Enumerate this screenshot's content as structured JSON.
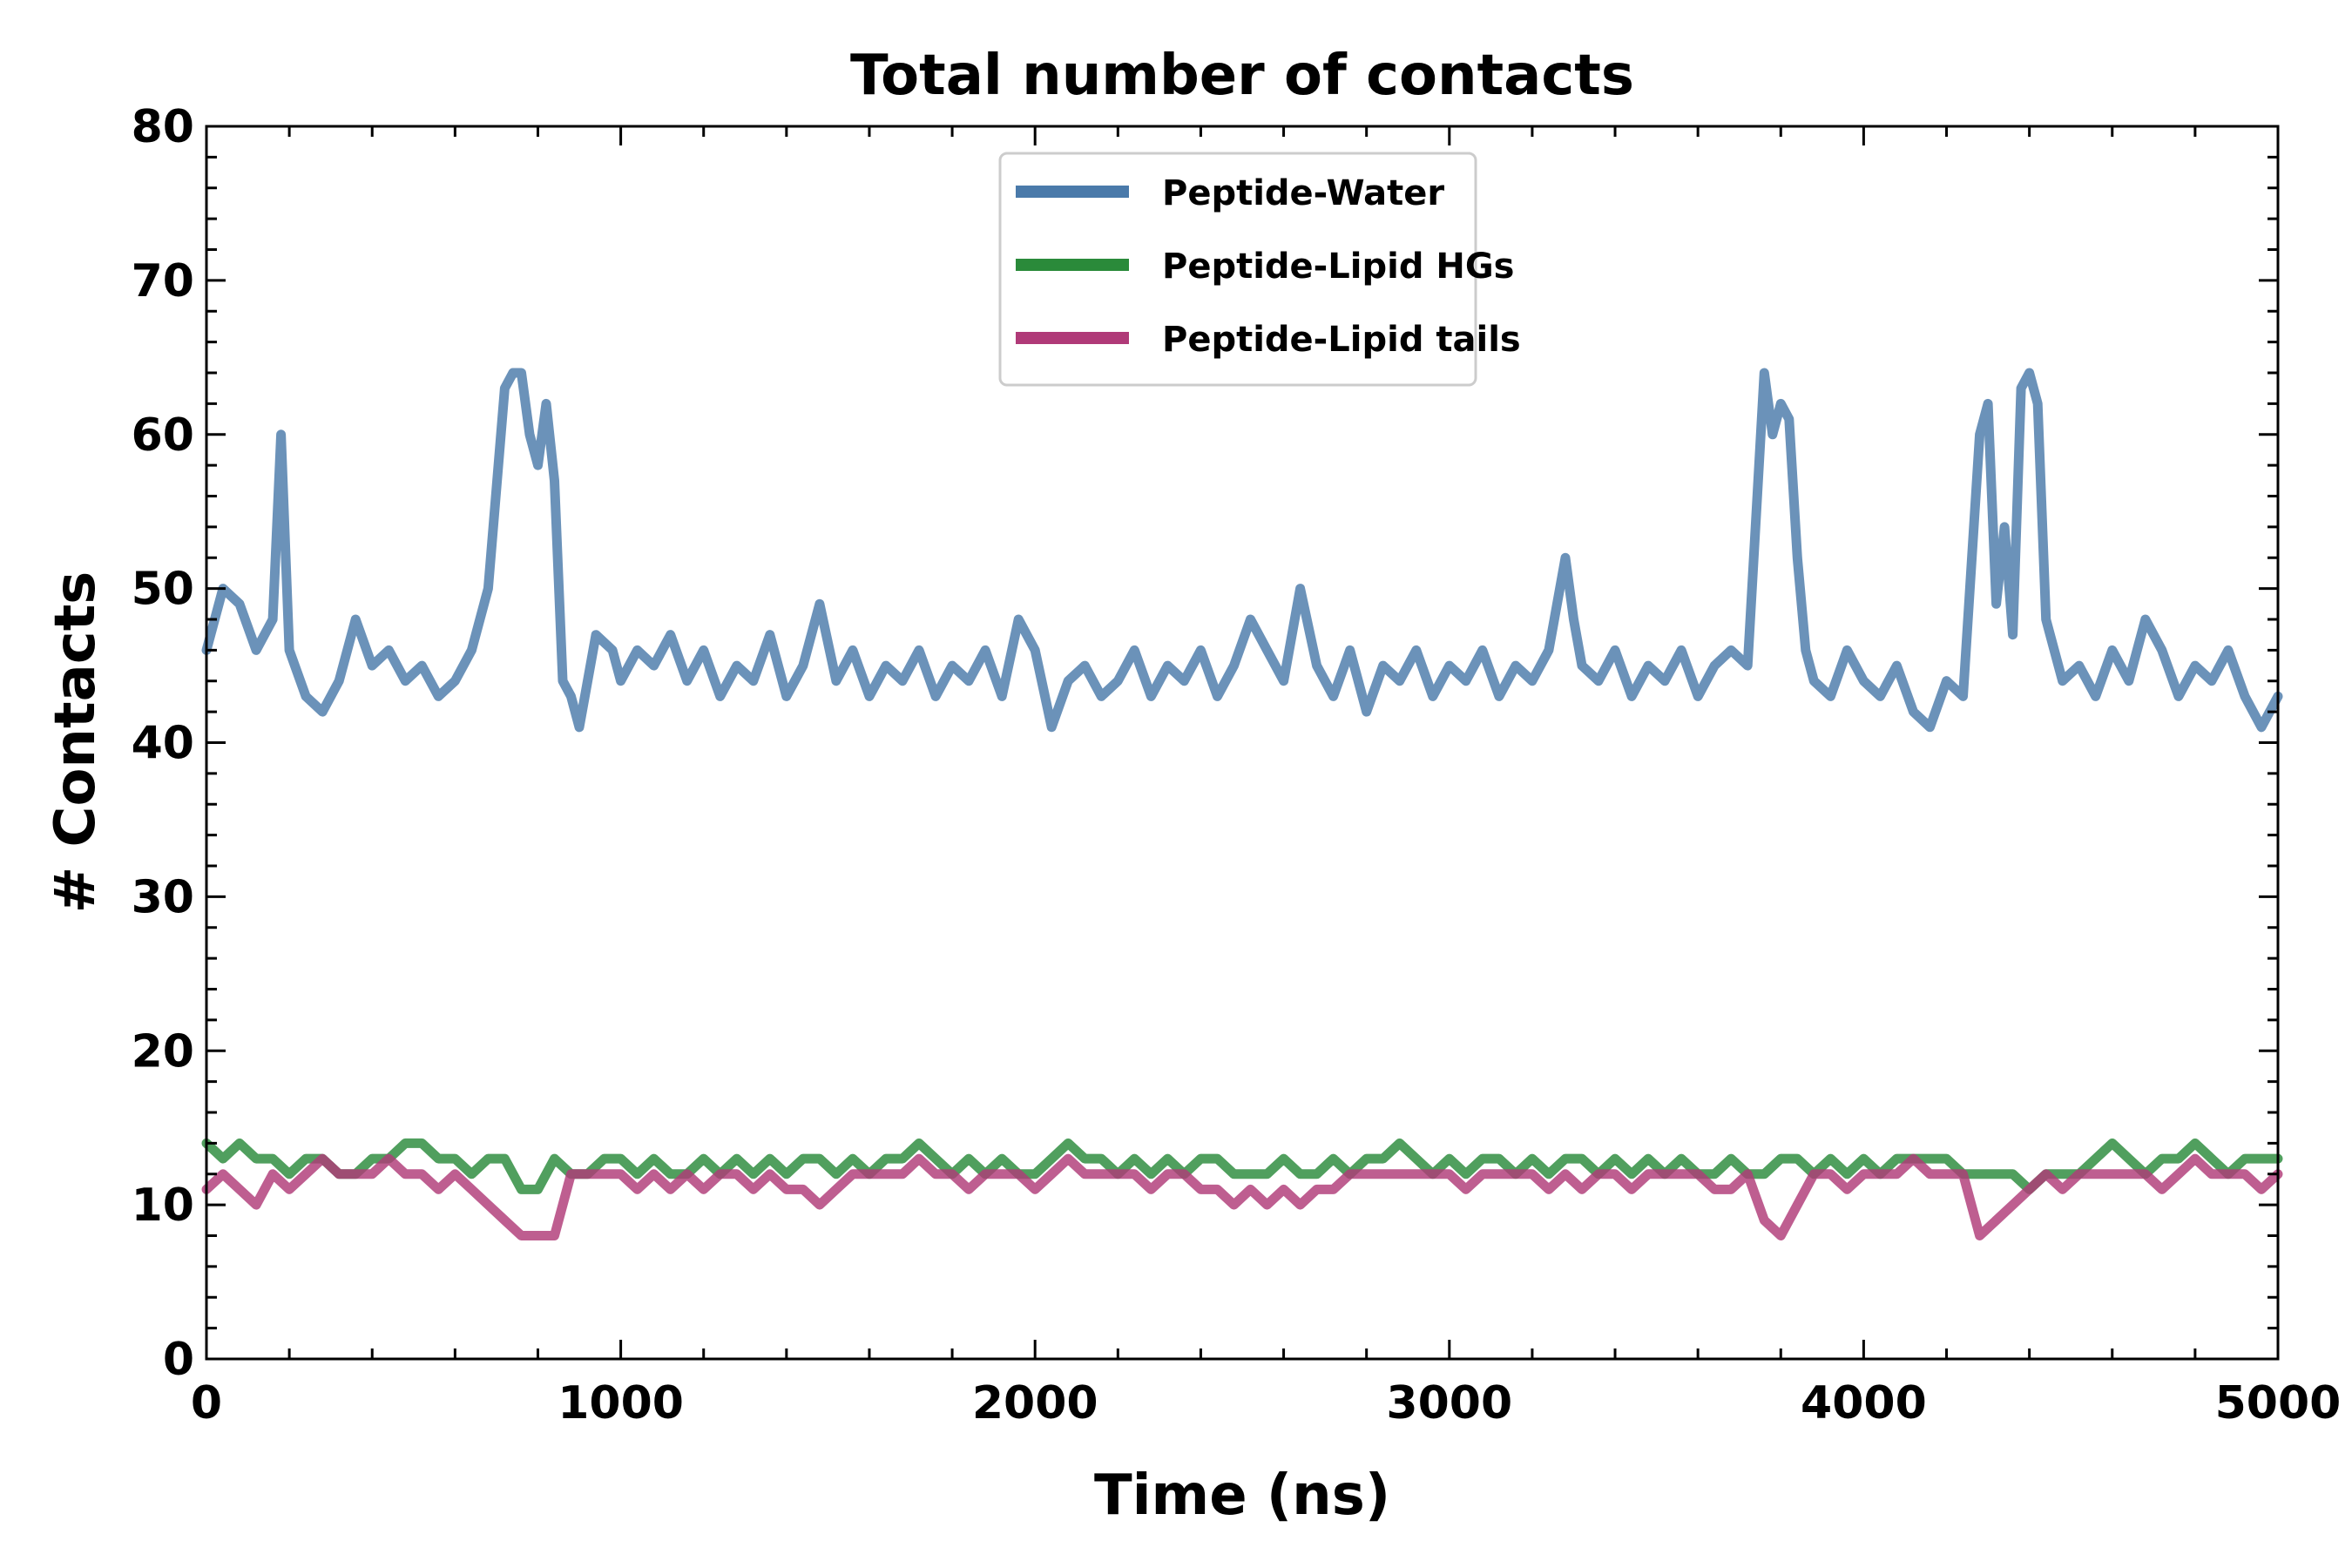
{
  "chart_data": {
    "type": "line",
    "title": "Total number of contacts",
    "xlabel": "Time (ns)",
    "ylabel": "# Contacts",
    "xlim": [
      0,
      5000
    ],
    "ylim": [
      0,
      80
    ],
    "x_ticks": [
      0,
      1000,
      2000,
      3000,
      4000,
      5000
    ],
    "y_ticks": [
      0,
      10,
      20,
      30,
      40,
      50,
      60,
      70,
      80
    ],
    "x_ticks_label": [
      "0",
      "1000",
      "2000",
      "3000",
      "4000",
      "5000"
    ],
    "y_ticks_label": [
      "0",
      "10",
      "20",
      "30",
      "40",
      "50",
      "60",
      "70",
      "80"
    ],
    "grid": false,
    "legend_position": "top-center",
    "series": [
      {
        "name": "Peptide-Water",
        "color": "#4a7aaa",
        "x": [
          0,
          40,
          80,
          120,
          160,
          180,
          200,
          240,
          280,
          320,
          360,
          400,
          440,
          480,
          520,
          560,
          600,
          640,
          680,
          720,
          740,
          760,
          780,
          800,
          820,
          840,
          860,
          880,
          900,
          940,
          980,
          1000,
          1040,
          1080,
          1120,
          1160,
          1200,
          1240,
          1280,
          1320,
          1360,
          1400,
          1440,
          1480,
          1520,
          1560,
          1600,
          1640,
          1680,
          1720,
          1760,
          1800,
          1840,
          1880,
          1920,
          1960,
          2000,
          2040,
          2080,
          2120,
          2160,
          2200,
          2240,
          2280,
          2320,
          2360,
          2400,
          2440,
          2480,
          2520,
          2560,
          2600,
          2640,
          2680,
          2720,
          2760,
          2800,
          2840,
          2880,
          2920,
          2960,
          3000,
          3040,
          3080,
          3120,
          3160,
          3200,
          3240,
          3280,
          3300,
          3320,
          3360,
          3400,
          3440,
          3480,
          3520,
          3560,
          3600,
          3640,
          3680,
          3720,
          3760,
          3780,
          3800,
          3820,
          3840,
          3860,
          3880,
          3920,
          3960,
          4000,
          4040,
          4080,
          4120,
          4160,
          4200,
          4240,
          4280,
          4300,
          4320,
          4340,
          4360,
          4380,
          4400,
          4420,
          4440,
          4460,
          4480,
          4520,
          4560,
          4600,
          4640,
          4680,
          4720,
          4760,
          4800,
          4840,
          4880,
          4920,
          4960,
          5000
        ],
        "values": [
          46,
          50,
          49,
          46,
          48,
          60,
          46,
          43,
          42,
          44,
          48,
          45,
          46,
          44,
          45,
          43,
          44,
          46,
          50,
          63,
          64,
          64,
          60,
          58,
          62,
          57,
          44,
          43,
          41,
          47,
          46,
          44,
          46,
          45,
          47,
          44,
          46,
          43,
          45,
          44,
          47,
          43,
          45,
          49,
          44,
          46,
          43,
          45,
          44,
          46,
          43,
          45,
          44,
          46,
          43,
          48,
          46,
          41,
          44,
          45,
          43,
          44,
          46,
          43,
          45,
          44,
          46,
          43,
          45,
          48,
          46,
          44,
          50,
          45,
          43,
          46,
          42,
          45,
          44,
          46,
          43,
          45,
          44,
          46,
          43,
          45,
          44,
          46,
          52,
          48,
          45,
          44,
          46,
          43,
          45,
          44,
          46,
          43,
          45,
          46,
          45,
          64,
          60,
          62,
          61,
          52,
          46,
          44,
          43,
          46,
          44,
          43,
          45,
          42,
          41,
          44,
          43,
          60,
          62,
          49,
          54,
          47,
          63,
          64,
          62,
          48,
          46,
          44,
          45,
          43,
          46,
          44,
          48,
          46,
          43,
          45,
          44,
          46,
          43,
          41,
          43
        ]
      },
      {
        "name": "Peptide-Lipid HGs",
        "color": "#2a8a3a",
        "x": [
          0,
          40,
          80,
          120,
          160,
          200,
          240,
          280,
          320,
          360,
          400,
          440,
          480,
          520,
          560,
          600,
          640,
          680,
          720,
          760,
          800,
          840,
          880,
          920,
          960,
          1000,
          1040,
          1080,
          1120,
          1160,
          1200,
          1240,
          1280,
          1320,
          1360,
          1400,
          1440,
          1480,
          1520,
          1560,
          1600,
          1640,
          1680,
          1720,
          1760,
          1800,
          1840,
          1880,
          1920,
          1960,
          2000,
          2040,
          2080,
          2120,
          2160,
          2200,
          2240,
          2280,
          2320,
          2360,
          2400,
          2440,
          2480,
          2520,
          2560,
          2600,
          2640,
          2680,
          2720,
          2760,
          2800,
          2840,
          2880,
          2920,
          2960,
          3000,
          3040,
          3080,
          3120,
          3160,
          3200,
          3240,
          3280,
          3320,
          3360,
          3400,
          3440,
          3480,
          3520,
          3560,
          3600,
          3640,
          3680,
          3720,
          3760,
          3800,
          3840,
          3880,
          3920,
          3960,
          4000,
          4040,
          4080,
          4120,
          4160,
          4200,
          4240,
          4280,
          4320,
          4360,
          4400,
          4440,
          4480,
          4520,
          4560,
          4600,
          4640,
          4680,
          4720,
          4760,
          4800,
          4840,
          4880,
          4920,
          4960,
          5000
        ],
        "values": [
          14,
          13,
          14,
          13,
          13,
          12,
          13,
          13,
          12,
          12,
          13,
          13,
          14,
          14,
          13,
          13,
          12,
          13,
          13,
          11,
          11,
          13,
          12,
          12,
          13,
          13,
          12,
          13,
          12,
          12,
          13,
          12,
          13,
          12,
          13,
          12,
          13,
          13,
          12,
          13,
          12,
          13,
          13,
          14,
          13,
          12,
          13,
          12,
          13,
          12,
          12,
          13,
          14,
          13,
          13,
          12,
          13,
          12,
          13,
          12,
          13,
          13,
          12,
          12,
          12,
          13,
          12,
          12,
          13,
          12,
          13,
          13,
          14,
          13,
          12,
          13,
          12,
          13,
          13,
          12,
          13,
          12,
          13,
          13,
          12,
          13,
          12,
          13,
          12,
          13,
          12,
          12,
          13,
          12,
          12,
          13,
          13,
          12,
          13,
          12,
          13,
          12,
          13,
          13,
          13,
          13,
          12,
          12,
          12,
          12,
          11,
          12,
          12,
          12,
          13,
          14,
          13,
          12,
          13,
          13,
          14,
          13,
          12,
          13,
          13,
          13
        ]
      },
      {
        "name": "Peptide-Lipid tails",
        "color": "#b03a78",
        "x": [
          0,
          40,
          80,
          120,
          160,
          200,
          240,
          280,
          320,
          360,
          400,
          440,
          480,
          520,
          560,
          600,
          640,
          680,
          720,
          760,
          800,
          840,
          880,
          920,
          960,
          1000,
          1040,
          1080,
          1120,
          1160,
          1200,
          1240,
          1280,
          1320,
          1360,
          1400,
          1440,
          1480,
          1520,
          1560,
          1600,
          1640,
          1680,
          1720,
          1760,
          1800,
          1840,
          1880,
          1920,
          1960,
          2000,
          2040,
          2080,
          2120,
          2160,
          2200,
          2240,
          2280,
          2320,
          2360,
          2400,
          2440,
          2480,
          2520,
          2560,
          2600,
          2640,
          2680,
          2720,
          2760,
          2800,
          2840,
          2880,
          2920,
          2960,
          3000,
          3040,
          3080,
          3120,
          3160,
          3200,
          3240,
          3280,
          3320,
          3360,
          3400,
          3440,
          3480,
          3520,
          3560,
          3600,
          3640,
          3680,
          3720,
          3760,
          3800,
          3840,
          3880,
          3920,
          3960,
          4000,
          4040,
          4080,
          4120,
          4160,
          4200,
          4240,
          4280,
          4320,
          4360,
          4400,
          4440,
          4480,
          4520,
          4560,
          4600,
          4640,
          4680,
          4720,
          4760,
          4800,
          4840,
          4880,
          4920,
          4960,
          5000
        ],
        "values": [
          11,
          12,
          11,
          10,
          12,
          11,
          12,
          13,
          12,
          12,
          12,
          13,
          12,
          12,
          11,
          12,
          11,
          10,
          9,
          8,
          8,
          8,
          12,
          12,
          12,
          12,
          11,
          12,
          11,
          12,
          11,
          12,
          12,
          11,
          12,
          11,
          11,
          10,
          11,
          12,
          12,
          12,
          12,
          13,
          12,
          12,
          11,
          12,
          12,
          12,
          11,
          12,
          13,
          12,
          12,
          12,
          12,
          11,
          12,
          12,
          11,
          11,
          10,
          11,
          10,
          11,
          10,
          11,
          11,
          12,
          12,
          12,
          12,
          12,
          12,
          12,
          11,
          12,
          12,
          12,
          12,
          11,
          12,
          11,
          12,
          12,
          11,
          12,
          12,
          12,
          12,
          11,
          11,
          12,
          9,
          8,
          10,
          12,
          12,
          11,
          12,
          12,
          12,
          13,
          12,
          12,
          12,
          8,
          9,
          10,
          11,
          12,
          11,
          12,
          12,
          12,
          12,
          12,
          11,
          12,
          13,
          12,
          12,
          12,
          11,
          12
        ]
      }
    ]
  }
}
